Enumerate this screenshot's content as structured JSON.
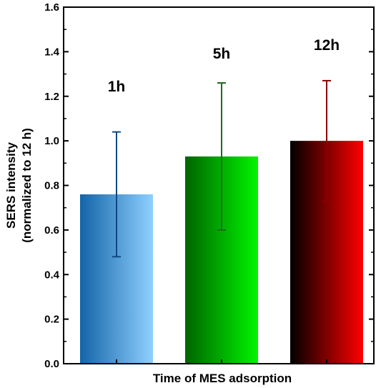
{
  "chart_data": {
    "type": "bar",
    "categories": [
      "1h",
      "5h",
      "12h"
    ],
    "values": [
      0.76,
      0.93,
      1.0
    ],
    "errors": [
      0.28,
      0.33,
      0.27
    ],
    "title": "",
    "xlabel": "Time of MES adsorption",
    "ylabel_line1": "SERS intensity",
    "ylabel_line2": "(normalized to 12 h)",
    "ylim": [
      0,
      1.6
    ],
    "yticks": [
      "0.0",
      "0.2",
      "0.4",
      "0.6",
      "0.8",
      "1.0",
      "1.2",
      "1.4",
      "1.6"
    ],
    "show_xtick_labels": false,
    "grid": false,
    "legend": "none",
    "bar_gradients": [
      {
        "from": "#1464a8",
        "to": "#8fd0ff"
      },
      {
        "from": "#006400",
        "to": "#00f500"
      },
      {
        "from": "#000000",
        "to": "#ff0000"
      }
    ],
    "error_colors": [
      "#0d4a7f",
      "#1d6b1d",
      "#8b0000"
    ]
  }
}
